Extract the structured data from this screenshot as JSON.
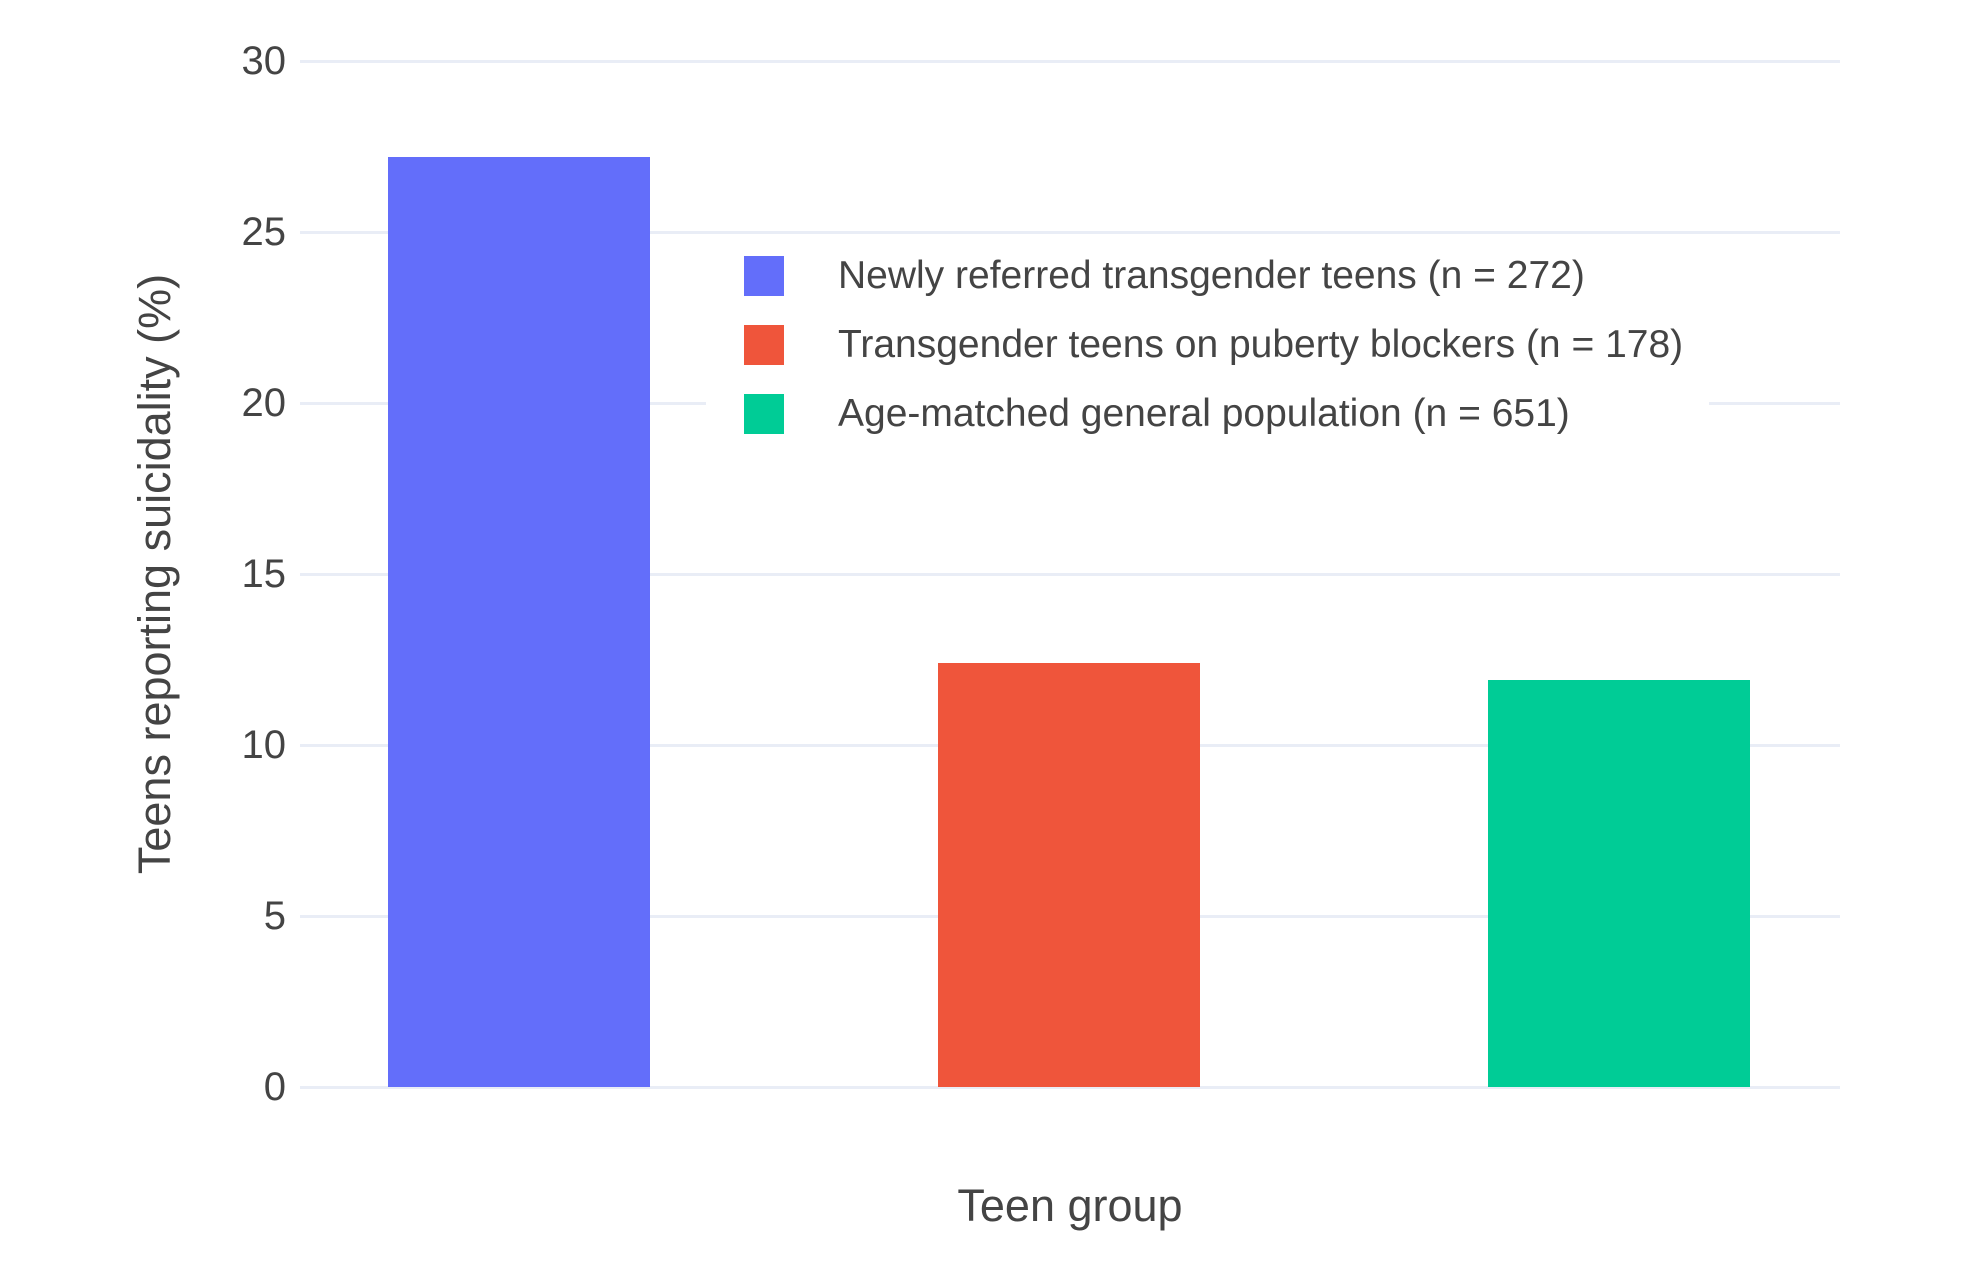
{
  "figure": {
    "background_color": "#ffffff",
    "text_color": "#444444",
    "grid_color": "#E9EDF6"
  },
  "chart_data": {
    "type": "bar",
    "title": "",
    "xlabel": "Teen group",
    "ylabel": "Teens reporting suicidality (%)",
    "ylim": [
      0,
      30
    ],
    "yticks": [
      0,
      5,
      10,
      15,
      20,
      25,
      30
    ],
    "grid": true,
    "x_tick_labels_shown": false,
    "legend_position": "inside-upper-center",
    "series": [
      {
        "name": "Newly referred transgender teens (n = 272)",
        "value": 27.2,
        "color": "#636EFA"
      },
      {
        "name": "Transgender teens on puberty blockers (n = 178)",
        "value": 12.4,
        "color": "#EF553B"
      },
      {
        "name": "Age-matched general population (n = 651)",
        "value": 11.9,
        "color": "#00CC96"
      }
    ]
  }
}
